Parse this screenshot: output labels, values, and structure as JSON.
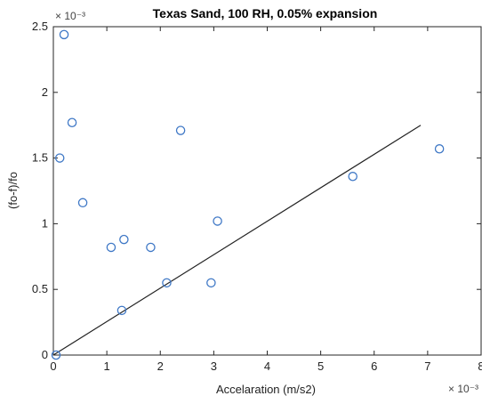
{
  "chart_data": {
    "type": "scatter",
    "title": "Texas Sand, 100 RH, 0.05% expansion",
    "xlabel": "Accelaration (m/s2)",
    "ylabel": "(fo-f)/fo",
    "x_exponent_label": "× 10⁻³",
    "y_exponent_label": "× 10⁻³",
    "xlim": [
      0,
      8
    ],
    "ylim": [
      0,
      2.5
    ],
    "xticks": [
      "0",
      "1",
      "2",
      "3",
      "4",
      "5",
      "6",
      "7",
      "8"
    ],
    "yticks": [
      "0",
      "0.5",
      "1",
      "1.5",
      "2",
      "2.5"
    ],
    "x_tick_values": [
      0,
      1,
      2,
      3,
      4,
      5,
      6,
      7,
      8
    ],
    "y_tick_values": [
      0,
      0.5,
      1,
      1.5,
      2,
      2.5
    ],
    "grid": false,
    "series": [
      {
        "marker": "open-circle",
        "color": "#3f78c6",
        "points": [
          {
            "x": 0.05,
            "y": 0.0
          },
          {
            "x": 0.2,
            "y": 2.44
          },
          {
            "x": 0.35,
            "y": 1.77
          },
          {
            "x": 0.12,
            "y": 1.5
          },
          {
            "x": 0.55,
            "y": 1.16
          },
          {
            "x": 1.08,
            "y": 0.82
          },
          {
            "x": 1.32,
            "y": 0.88
          },
          {
            "x": 1.28,
            "y": 0.34
          },
          {
            "x": 1.82,
            "y": 0.82
          },
          {
            "x": 2.12,
            "y": 0.55
          },
          {
            "x": 2.38,
            "y": 1.71
          },
          {
            "x": 2.95,
            "y": 0.55
          },
          {
            "x": 3.07,
            "y": 1.02
          },
          {
            "x": 5.6,
            "y": 1.36
          },
          {
            "x": 7.22,
            "y": 1.57
          }
        ]
      }
    ],
    "fit_line": {
      "color": "#222222",
      "x": [
        0.0,
        6.87
      ],
      "y": [
        0.0,
        1.75
      ]
    }
  }
}
